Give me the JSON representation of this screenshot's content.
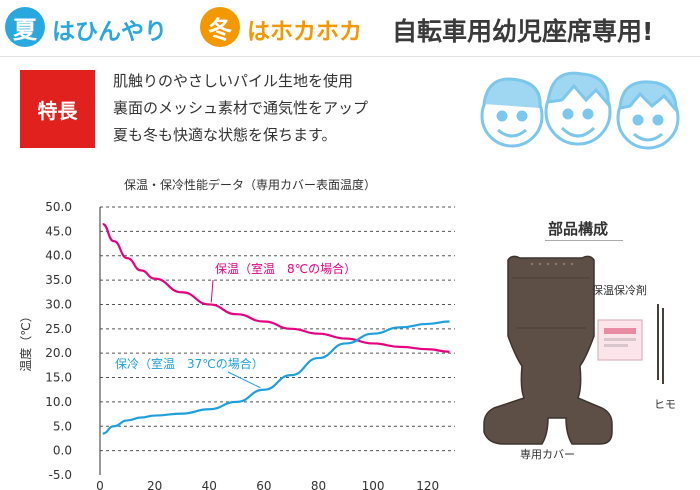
{
  "header": {
    "summer_char": "夏",
    "summer_text": "はひんやり",
    "winter_char": "冬",
    "winter_text": "はホカホカ",
    "title": "自転車用幼児座席専用!",
    "summer_color": "#29a8e0",
    "winter_color": "#f39800"
  },
  "features": {
    "badge": "特長",
    "lines": [
      "肌触りのやさしいパイル生地を使用",
      "裏面のメッシュ素材で通気性をアップ",
      "夏も冬も快適な状態を保ちます。"
    ]
  },
  "chart_data": {
    "type": "line",
    "title": "保温・保冷性能データ（専用カバー表面温度）",
    "ylabel": "温度（℃）",
    "xlabel": "",
    "xlim": [
      0,
      130
    ],
    "ylim": [
      -5,
      50
    ],
    "xticks": [
      0,
      20,
      40,
      60,
      80,
      100,
      120
    ],
    "yticks": [
      -5,
      0,
      5,
      10,
      15,
      20,
      25,
      30,
      35,
      40,
      45,
      50
    ],
    "ytick_labels": [
      "-5.0",
      "0.0",
      "5.0",
      "10.0",
      "15.0",
      "20.0",
      "25.0",
      "30.0",
      "35.0",
      "40.0",
      "45.0",
      "50.0"
    ],
    "grid": "horizontal dashed",
    "series": [
      {
        "name": "保温（室温　8℃の場合）",
        "color": "#e4007f",
        "x": [
          1,
          5,
          10,
          15,
          20,
          30,
          40,
          50,
          60,
          70,
          80,
          90,
          100,
          110,
          120,
          128
        ],
        "y": [
          46.5,
          43,
          39.5,
          37,
          35.3,
          32.5,
          30,
          28,
          26.5,
          25,
          24,
          23,
          22,
          21.3,
          20.8,
          20.3
        ]
      },
      {
        "name": "保冷（室温　37℃の場合）",
        "color": "#1ea0dc",
        "x": [
          1,
          5,
          10,
          15,
          20,
          30,
          40,
          50,
          60,
          70,
          80,
          90,
          100,
          110,
          120,
          128
        ],
        "y": [
          3.5,
          5,
          6.2,
          6.8,
          7.2,
          7.6,
          8.5,
          10,
          12.5,
          15.5,
          19,
          22,
          24,
          25.3,
          26,
          26.5
        ]
      }
    ]
  },
  "parts": {
    "title": "部品構成",
    "heat_pack_label": "保温保冷剤",
    "strap_label": "ヒモ",
    "cover_label": "専用カバー"
  }
}
